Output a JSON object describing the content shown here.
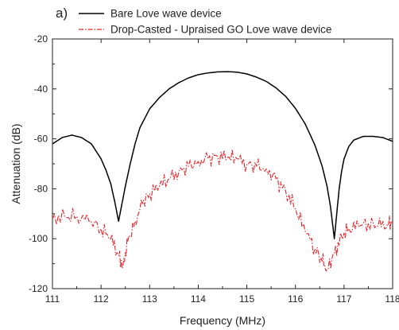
{
  "chart_data": {
    "type": "line",
    "panel_label": "a)",
    "title": "",
    "xlabel": "Frequency (MHz)",
    "ylabel": "Attenuation (dB)",
    "xlim": [
      111,
      118
    ],
    "ylim": [
      -120,
      -20
    ],
    "xticks": [
      111,
      112,
      113,
      114,
      115,
      116,
      117,
      118
    ],
    "yticks": [
      -20,
      -40,
      -60,
      -80,
      -100,
      -120
    ],
    "grid": false,
    "legend_position": "top",
    "series": [
      {
        "name": "Bare Love wave device",
        "color": "#000000",
        "style": "solid",
        "x": [
          111.0,
          111.2,
          111.4,
          111.6,
          111.8,
          112.0,
          112.1,
          112.2,
          112.28,
          112.33,
          112.36,
          112.4,
          112.45,
          112.5,
          112.6,
          112.7,
          112.8,
          113.0,
          113.2,
          113.4,
          113.6,
          113.8,
          114.0,
          114.2,
          114.4,
          114.6,
          114.8,
          115.0,
          115.2,
          115.4,
          115.6,
          115.8,
          116.0,
          116.2,
          116.4,
          116.55,
          116.65,
          116.72,
          116.77,
          116.8,
          116.85,
          116.9,
          116.95,
          117.0,
          117.1,
          117.2,
          117.4,
          117.6,
          117.8,
          118.0
        ],
        "y": [
          -62,
          -59.5,
          -58.5,
          -59.5,
          -62,
          -68,
          -72.5,
          -78,
          -85,
          -90,
          -93,
          -89,
          -84,
          -79,
          -70,
          -62,
          -55.5,
          -48,
          -43.5,
          -40,
          -37.5,
          -35.6,
          -34.3,
          -33.6,
          -33.2,
          -33.1,
          -33.3,
          -34,
          -35.3,
          -37,
          -39.6,
          -43,
          -47.8,
          -54,
          -62.5,
          -71,
          -79,
          -87,
          -95,
          -100,
          -90,
          -80,
          -73,
          -68,
          -63,
          -60.5,
          -59,
          -59,
          -59.5,
          -61
        ]
      },
      {
        "name": "Drop-Casted - Upraised GO Love wave device",
        "color": "#e8242b",
        "style": "dash-dot",
        "x": [
          111.0,
          111.25,
          111.5,
          111.75,
          112.0,
          112.2,
          112.35,
          112.45,
          112.55,
          112.7,
          112.85,
          113.0,
          113.2,
          113.4,
          113.6,
          113.8,
          114.0,
          114.2,
          114.4,
          114.6,
          114.8,
          115.0,
          115.2,
          115.4,
          115.6,
          115.8,
          116.0,
          116.2,
          116.4,
          116.55,
          116.65,
          116.8,
          116.95,
          117.1,
          117.3,
          117.5,
          117.7,
          117.9,
          118.0
        ],
        "y": [
          -92,
          -91,
          -91,
          -93,
          -96,
          -100,
          -106,
          -111,
          -101,
          -93,
          -86,
          -82,
          -79,
          -76,
          -73,
          -71,
          -69,
          -68,
          -67,
          -67.5,
          -68,
          -70,
          -71,
          -72,
          -76,
          -81,
          -88,
          -97,
          -104,
          -109,
          -112,
          -106,
          -99,
          -96,
          -95,
          -94,
          -95,
          -94,
          -93
        ]
      }
    ]
  }
}
